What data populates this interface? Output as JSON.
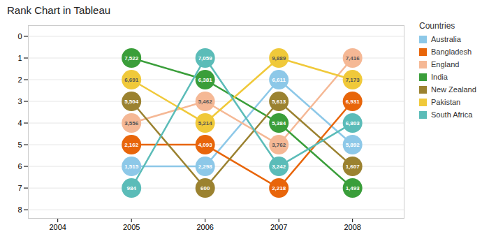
{
  "chart_data": {
    "type": "bump",
    "title": "Rank Chart in Tableau",
    "x": [
      2005,
      2006,
      2007,
      2008
    ],
    "series": [
      {
        "name": "Australia",
        "color": "#8DC8E8",
        "values": [
          6,
          6,
          2,
          5
        ],
        "labels": [
          "1,515",
          "2,298",
          "6,611",
          "5,892"
        ]
      },
      {
        "name": "Bangladesh",
        "color": "#E8650A",
        "values": [
          5,
          5,
          7,
          3
        ],
        "labels": [
          "2,162",
          "4,093",
          "2,218",
          "6,931"
        ]
      },
      {
        "name": "England",
        "color": "#F5B895",
        "values": [
          4,
          3,
          5,
          1
        ],
        "labels": [
          "3,556",
          "5,462",
          "3,762",
          "7,416"
        ]
      },
      {
        "name": "India",
        "color": "#3A9E3A",
        "values": [
          1,
          2,
          4,
          7
        ],
        "labels": [
          "7,522",
          "6,381",
          "5,384",
          "1,493"
        ]
      },
      {
        "name": "New Zealand",
        "color": "#9B8230",
        "values": [
          3,
          7,
          3,
          6
        ],
        "labels": [
          "5,504",
          "600",
          "5,613",
          "1,607"
        ]
      },
      {
        "name": "Pakistan",
        "color": "#F0C93A",
        "values": [
          2,
          4,
          1,
          2
        ],
        "labels": [
          "6,691",
          "5,214",
          "9,889",
          "7,173"
        ]
      },
      {
        "name": "South Africa",
        "color": "#5BBCB8",
        "values": [
          7,
          1,
          6,
          4
        ],
        "labels": [
          "984",
          "7,059",
          "3,242",
          "6,803"
        ]
      }
    ],
    "xlim": [
      2003.6,
      2008.7
    ],
    "xticks": [
      2004,
      2005,
      2006,
      2007,
      2008
    ],
    "ylim": [
      8.4,
      -0.5
    ],
    "yticks": [
      0,
      1,
      2,
      3,
      4,
      5,
      6,
      7,
      8
    ],
    "grid": "y",
    "legend": "right",
    "legend_title": "Countries",
    "data_labels": true,
    "marker": "circle"
  }
}
